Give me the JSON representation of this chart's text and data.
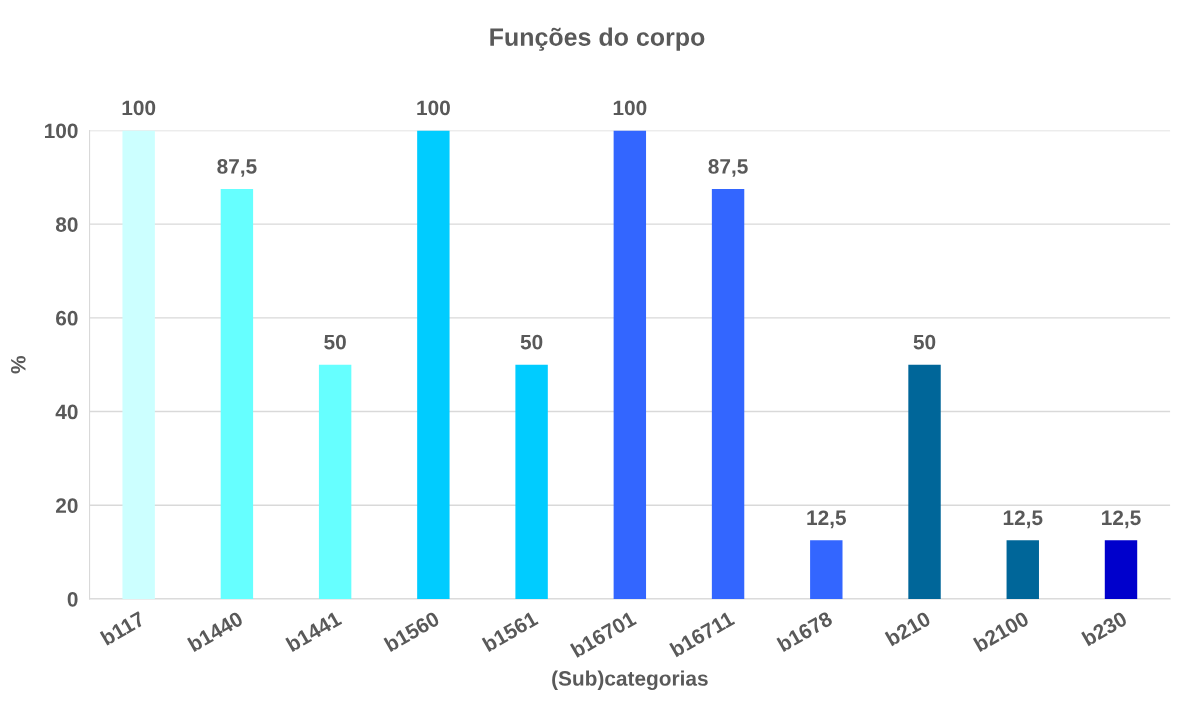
{
  "chart_data": {
    "type": "bar",
    "title": "Funções do corpo",
    "xlabel": "(Sub)categorias",
    "ylabel": "%",
    "categories": [
      "b117",
      "b1440",
      "b1441",
      "b1560",
      "b1561",
      "b16701",
      "b16711",
      "b1678",
      "b210",
      "b2100",
      "b230"
    ],
    "values": [
      100,
      87.5,
      50,
      100,
      50,
      100,
      87.5,
      12.5,
      50,
      12.5,
      12.5
    ],
    "colors": [
      "#ccffff",
      "#66ffff",
      "#66ffff",
      "#00ccff",
      "#00ccff",
      "#3366ff",
      "#3366ff",
      "#3366ff",
      "#006699",
      "#006699",
      "#0000cc"
    ],
    "value_labels": [
      "100",
      "87,5",
      "50",
      "100",
      "50",
      "100",
      "87,5",
      "12,5",
      "50",
      "12,5",
      "12,5"
    ],
    "ylim": [
      0,
      100
    ],
    "yticks": [
      0,
      20,
      40,
      60,
      80,
      100
    ],
    "grid": "y",
    "legend": false
  }
}
